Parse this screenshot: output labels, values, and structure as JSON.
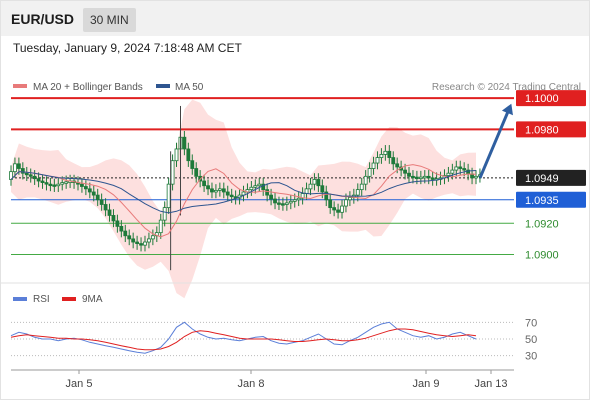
{
  "header": {
    "pair": "EUR/USD",
    "timeframe": "30 MIN"
  },
  "datetime": "Tuesday, January 9, 2024 7:18:48 AM CET",
  "legend": {
    "ma20": "MA 20 + Bollinger Bands",
    "ma50": "MA 50",
    "credit": "Research © 2024 Trading Central",
    "rsi": "RSI",
    "rsi_ma": "9MA"
  },
  "colors": {
    "resistance": "#e02020",
    "support": "#44aa44",
    "current": "#222222",
    "pivot": "#1f5fd6",
    "ma20": "#e87a7a",
    "ma50": "#2e5590",
    "bollinger": "#fde0df",
    "candle": "#1e7a3a",
    "arrow": "#2f5fa0",
    "rsi": "#5b7fd8",
    "rsi_ma": "#e02020"
  },
  "chart_data": {
    "type": "candlestick",
    "x_labels": [
      "Jan 5",
      "Jan 8",
      "Jan 9",
      "Jan 13"
    ],
    "price_levels": [
      {
        "kind": "resistance",
        "value": "1.1000"
      },
      {
        "kind": "resistance",
        "value": "1.0980"
      },
      {
        "kind": "current",
        "value": "1.0949"
      },
      {
        "kind": "pivot",
        "value": "1.0935"
      },
      {
        "kind": "support",
        "value": "1.0920"
      },
      {
        "kind": "support",
        "value": "1.0900"
      }
    ],
    "ylim": [
      1.0885,
      1.1002
    ],
    "price_path": [
      1.0948,
      1.0958,
      1.0952,
      1.095,
      1.0947,
      1.0945,
      1.0944,
      1.0946,
      1.0947,
      1.0945,
      1.0942,
      1.0938,
      1.0932,
      1.0925,
      1.0918,
      1.0912,
      1.0908,
      1.0906,
      1.091,
      1.0914,
      1.093,
      1.096,
      1.0975,
      1.096,
      1.095,
      1.0944,
      1.094,
      1.0942,
      1.0938,
      1.0936,
      1.094,
      1.0943,
      1.0945,
      1.0938,
      1.0933,
      1.0932,
      1.0934,
      1.0936,
      1.0942,
      1.0948,
      1.094,
      1.093,
      1.0927,
      1.0935,
      1.0938,
      1.0945,
      1.0955,
      1.0962,
      1.0966,
      1.0958,
      1.0954,
      1.095,
      1.0949,
      1.095,
      1.0948,
      1.0949,
      1.0952,
      1.0956,
      1.0954,
      1.0949
    ],
    "forecast": {
      "from": 1.0949,
      "to": 1.0998
    },
    "rsi": {
      "levels": [
        "70",
        "50",
        "30"
      ],
      "ylim": [
        20,
        80
      ],
      "values": [
        54,
        58,
        56,
        52,
        50,
        50,
        48,
        50,
        51,
        49,
        46,
        44,
        42,
        40,
        38,
        36,
        34,
        33,
        36,
        40,
        50,
        64,
        70,
        62,
        56,
        52,
        50,
        51,
        49,
        48,
        50,
        52,
        53,
        48,
        45,
        44,
        46,
        48,
        52,
        56,
        50,
        44,
        43,
        48,
        52,
        58,
        64,
        68,
        70,
        62,
        58,
        54,
        52,
        54,
        50,
        52,
        56,
        58,
        54,
        50
      ],
      "ma": [
        52,
        54,
        55,
        54,
        53,
        52,
        51,
        51,
        50,
        50,
        49,
        48,
        46,
        44,
        42,
        40,
        38,
        37,
        37,
        38,
        41,
        46,
        53,
        58,
        60,
        59,
        57,
        55,
        53,
        51,
        50,
        50,
        50,
        50,
        49,
        48,
        47,
        47,
        48,
        49,
        50,
        49,
        48,
        48,
        49,
        51,
        54,
        57,
        60,
        62,
        62,
        61,
        59,
        57,
        55,
        54,
        53,
        54,
        55,
        54
      ]
    }
  }
}
